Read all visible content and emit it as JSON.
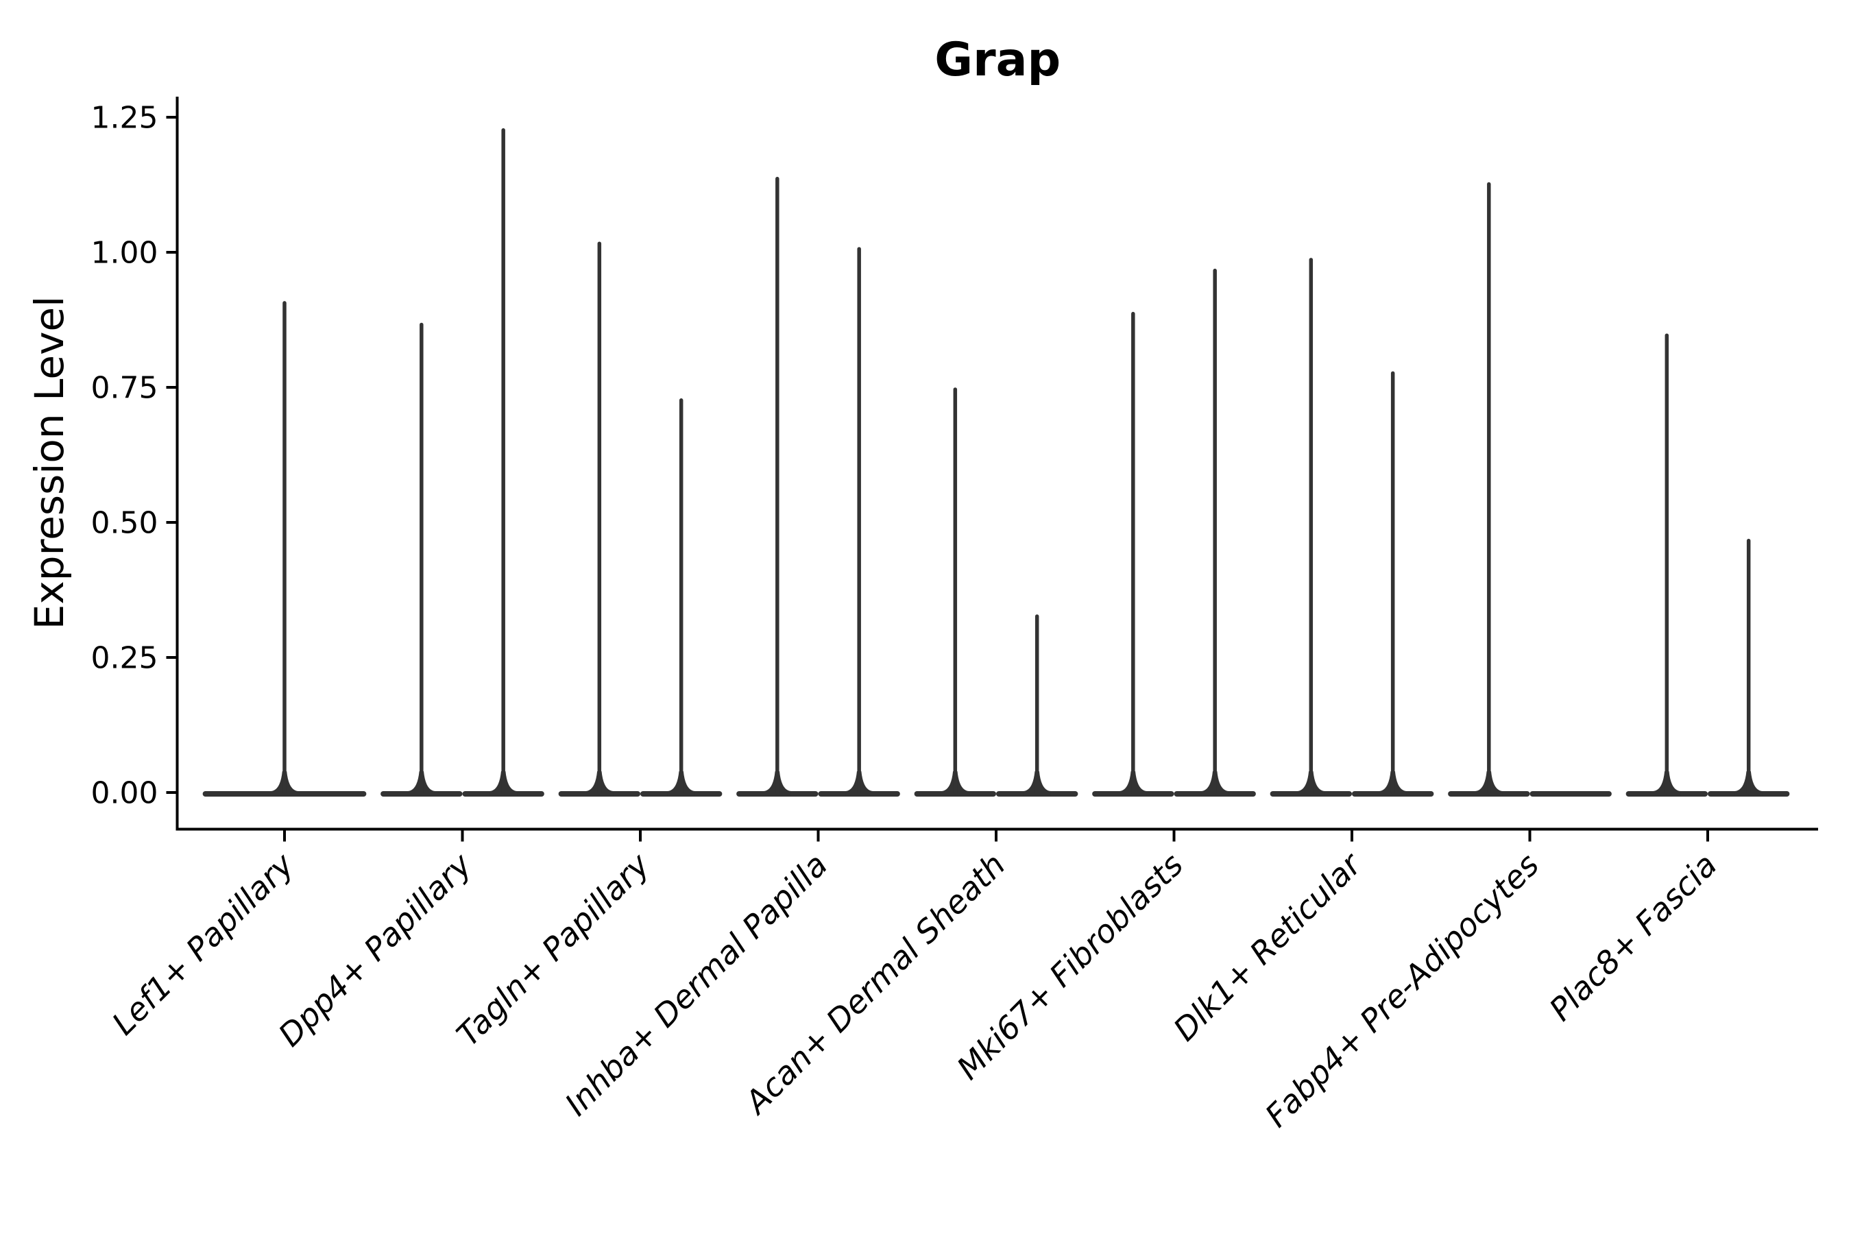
{
  "figure": {
    "title": "Grap",
    "background_color": "#ffffff"
  },
  "chart_data": {
    "type": "violin",
    "title": "Grap",
    "ylabel": "Expression Level",
    "xlabel": "",
    "legend": "none",
    "grid": false,
    "background_color": "#ffffff",
    "violin_color": "#333333",
    "axis_color": "#000000",
    "text_color": "#000000",
    "ylim": [
      -0.07,
      1.29
    ],
    "y_ticks": [
      0,
      0.25,
      0.5,
      0.75,
      1.0,
      1.25
    ],
    "y_tick_labels": [
      "0.00",
      "0.25",
      "0.50",
      "0.75",
      "1.00",
      "1.25"
    ],
    "x_tick_label_rotation_deg": 45,
    "baseline_value": 0.0,
    "categories": [
      "Lef1+ Papillary",
      "Dpp4+ Papillary",
      "Tagln+ Papillary",
      "Inhba+ Dermal Papilla",
      "Acan+ Dermal Sheath",
      "Mki67+ Fibroblasts",
      "Dlk1+ Reticular",
      "Fabp4+ Pre-Adipocytes",
      "Plac8+ Fascia"
    ],
    "groups": [
      {
        "category": "Lef1+ Papillary",
        "violins": [
          {
            "offset": 0.0,
            "half_width": 0.46,
            "max_expression": 0.91
          }
        ]
      },
      {
        "category": "Dpp4+ Papillary",
        "violins": [
          {
            "offset": -0.23,
            "half_width": 0.23,
            "max_expression": 0.87
          },
          {
            "offset": 0.23,
            "half_width": 0.23,
            "max_expression": 1.23
          }
        ]
      },
      {
        "category": "Tagln+ Papillary",
        "violins": [
          {
            "offset": -0.23,
            "half_width": 0.23,
            "max_expression": 1.02
          },
          {
            "offset": 0.23,
            "half_width": 0.23,
            "max_expression": 0.73
          }
        ]
      },
      {
        "category": "Inhba+ Dermal Papilla",
        "violins": [
          {
            "offset": -0.23,
            "half_width": 0.23,
            "max_expression": 1.14
          },
          {
            "offset": 0.23,
            "half_width": 0.23,
            "max_expression": 1.01
          }
        ]
      },
      {
        "category": "Acan+ Dermal Sheath",
        "violins": [
          {
            "offset": -0.23,
            "half_width": 0.23,
            "max_expression": 0.75
          },
          {
            "offset": 0.23,
            "half_width": 0.23,
            "max_expression": 0.33
          }
        ]
      },
      {
        "category": "Mki67+ Fibroblasts",
        "violins": [
          {
            "offset": -0.23,
            "half_width": 0.23,
            "max_expression": 0.89
          },
          {
            "offset": 0.23,
            "half_width": 0.23,
            "max_expression": 0.97
          }
        ]
      },
      {
        "category": "Dlk1+ Reticular",
        "violins": [
          {
            "offset": -0.23,
            "half_width": 0.23,
            "max_expression": 0.99
          },
          {
            "offset": 0.23,
            "half_width": 0.23,
            "max_expression": 0.78
          }
        ]
      },
      {
        "category": "Fabp4+ Pre-Adipocytes",
        "violins": [
          {
            "offset": -0.23,
            "half_width": 0.23,
            "max_expression": 1.13
          },
          {
            "offset": 0.23,
            "half_width": 0.23,
            "max_expression": 0.0
          }
        ]
      },
      {
        "category": "Plac8+ Fascia",
        "violins": [
          {
            "offset": -0.23,
            "half_width": 0.23,
            "max_expression": 0.85
          },
          {
            "offset": 0.23,
            "half_width": 0.23,
            "max_expression": 0.47
          }
        ]
      }
    ]
  }
}
